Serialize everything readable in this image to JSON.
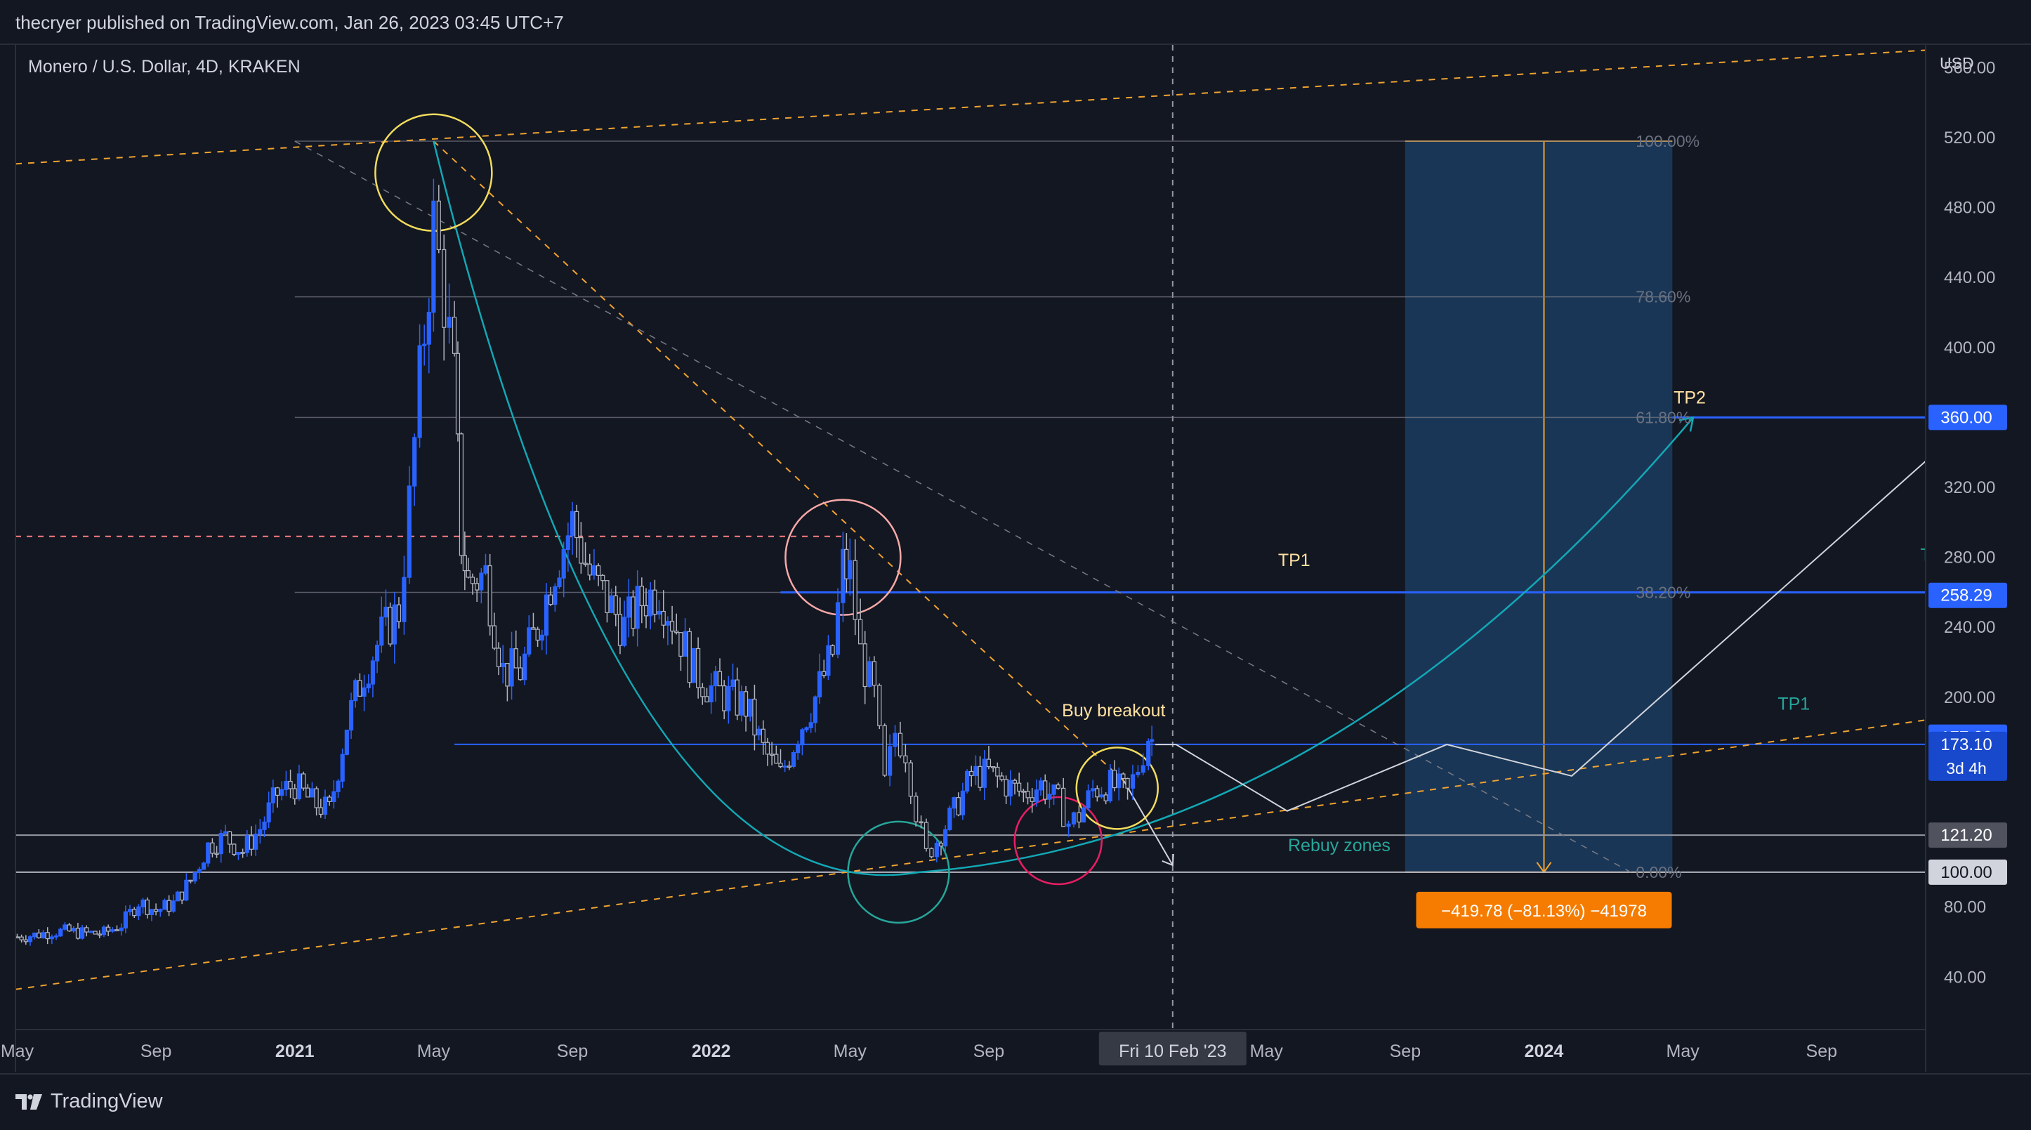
{
  "header": {
    "published": "thecryer published on TradingView.com, Jan 26, 2023 03:45 UTC+7"
  },
  "footer": {
    "brand": "TradingView"
  },
  "chart_data": {
    "type": "candlestick",
    "title": "Monero / U.S. Dollar, 4D, KRAKEN",
    "axis_unit": "USD",
    "y_ticks": [
      40,
      80,
      120,
      160,
      200,
      240,
      280,
      320,
      360,
      400,
      440,
      480,
      520,
      560
    ],
    "y_tick_labels": [
      "40.00",
      "80.00",
      "",
      "",
      "200.00",
      "240.00",
      "280.00",
      "320.00",
      "",
      "400.00",
      "440.00",
      "480.00",
      "520.00",
      "560.00"
    ],
    "x_ticks": [
      {
        "label": "May",
        "t": 0.0
      },
      {
        "label": "Sep",
        "t": 4.0
      },
      {
        "label": "2021",
        "t": 8.0,
        "bold": true
      },
      {
        "label": "May",
        "t": 12.0
      },
      {
        "label": "Sep",
        "t": 16.0
      },
      {
        "label": "2022",
        "t": 20.0,
        "bold": true
      },
      {
        "label": "May",
        "t": 24.0
      },
      {
        "label": "Sep",
        "t": 28.0
      },
      {
        "label": "May",
        "t": 36.0
      },
      {
        "label": "Sep",
        "t": 40.0
      },
      {
        "label": "2024",
        "t": 44.0,
        "bold": true
      },
      {
        "label": "May",
        "t": 48.0
      },
      {
        "label": "Sep",
        "t": 52.0
      }
    ],
    "xlim": [
      -0.05,
      55.0
    ],
    "ylim": [
      10,
      573
    ],
    "crosshair": {
      "date_label": "Fri 10 Feb '23",
      "t": 33.3
    },
    "price_badges": [
      {
        "text": "360.00",
        "value": 360,
        "color": "#2962ff"
      },
      {
        "text": "258.29",
        "value": 258.29,
        "color": "#2962ff"
      },
      {
        "text": "177.22",
        "value": 177.22,
        "color": "#2962ff"
      },
      {
        "text": "173.10",
        "value": 173.1,
        "color": "#1848cc",
        "subtext": "3d 4h"
      },
      {
        "text": "121.20",
        "value": 121.2,
        "color": "#50535e"
      },
      {
        "text": "100.00",
        "value": 100,
        "color": "#d1d4dc",
        "textcolor": "#131722"
      }
    ],
    "fib_levels": [
      {
        "label": "100.00%",
        "value": 518
      },
      {
        "label": "78.60%",
        "value": 429
      },
      {
        "label": "61.80%",
        "value": 360
      },
      {
        "label": "38.20%",
        "value": 260
      },
      {
        "label": "0.00%",
        "value": 100
      }
    ],
    "annotations": [
      {
        "text": "TP2",
        "t": 48.2,
        "value": 368,
        "color": "#ffe0a0"
      },
      {
        "text": "TP1",
        "t": 36.8,
        "value": 275,
        "color": "#ffe0a0"
      },
      {
        "text": "Buy breakout",
        "t": 31.6,
        "value": 189,
        "color": "#ffe0a0"
      },
      {
        "text": "Rebuy zones",
        "t": 38.1,
        "value": 112,
        "color": "#26a69a"
      },
      {
        "text": "TP1",
        "t": 51.2,
        "value": 193,
        "color": "#26a69a"
      },
      {
        "text": "T",
        "t": 55.0,
        "value": 278,
        "color": "#26a69a"
      }
    ],
    "measure_label": "−419.78 (−81.13%) −41978",
    "price_path": [
      [
        0,
        63
      ],
      [
        0.5,
        64
      ],
      [
        1,
        66
      ],
      [
        1.5,
        66
      ],
      [
        2,
        65
      ],
      [
        2.5,
        65
      ],
      [
        3,
        70
      ],
      [
        3.5,
        83
      ],
      [
        4,
        78
      ],
      [
        4.5,
        82
      ],
      [
        5,
        95
      ],
      [
        5.5,
        115
      ],
      [
        6,
        120
      ],
      [
        6.5,
        112
      ],
      [
        7,
        125
      ],
      [
        7.5,
        145
      ],
      [
        8,
        150
      ],
      [
        8.5,
        140
      ],
      [
        9,
        135
      ],
      [
        9.5,
        185
      ],
      [
        10,
        215
      ],
      [
        10.5,
        235
      ],
      [
        11,
        250
      ],
      [
        11.3,
        310
      ],
      [
        11.6,
        380
      ],
      [
        12,
        470
      ],
      [
        12.3,
        430
      ],
      [
        12.6,
        380
      ],
      [
        12.8,
        290
      ],
      [
        13,
        265
      ],
      [
        13.5,
        270
      ],
      [
        14,
        215
      ],
      [
        14.5,
        215
      ],
      [
        15,
        240
      ],
      [
        15.5,
        275
      ],
      [
        16,
        300
      ],
      [
        16.5,
        270
      ],
      [
        17,
        255
      ],
      [
        17.5,
        240
      ],
      [
        18,
        255
      ],
      [
        18.5,
        262
      ],
      [
        19,
        240
      ],
      [
        19.5,
        215
      ],
      [
        20,
        205
      ],
      [
        20.5,
        200
      ],
      [
        21,
        195
      ],
      [
        21.5,
        170
      ],
      [
        22,
        155
      ],
      [
        22.5,
        180
      ],
      [
        23,
        200
      ],
      [
        23.5,
        225
      ],
      [
        23.8,
        275
      ],
      [
        24,
        270
      ],
      [
        24.3,
        225
      ],
      [
        24.7,
        200
      ],
      [
        25,
        150
      ],
      [
        25.3,
        180
      ],
      [
        25.6,
        170
      ],
      [
        25.9,
        135
      ],
      [
        26.2,
        110
      ],
      [
        26.5,
        118
      ],
      [
        27,
        135
      ],
      [
        27.5,
        155
      ],
      [
        28,
        157
      ],
      [
        28.5,
        150
      ],
      [
        29,
        145
      ],
      [
        29.5,
        150
      ],
      [
        30,
        140
      ],
      [
        30.3,
        128
      ],
      [
        30.6,
        132
      ],
      [
        31,
        147
      ],
      [
        31.5,
        150
      ],
      [
        32,
        145
      ],
      [
        32.3,
        160
      ],
      [
        32.6,
        178
      ],
      [
        32.8,
        173
      ]
    ],
    "resistance_line": {
      "value": 173.1,
      "from_t": 12.6,
      "to_t": 55
    },
    "target_zone": {
      "from_t": 40.0,
      "to_t": 47.7,
      "top": 518,
      "bottom": 100
    }
  }
}
